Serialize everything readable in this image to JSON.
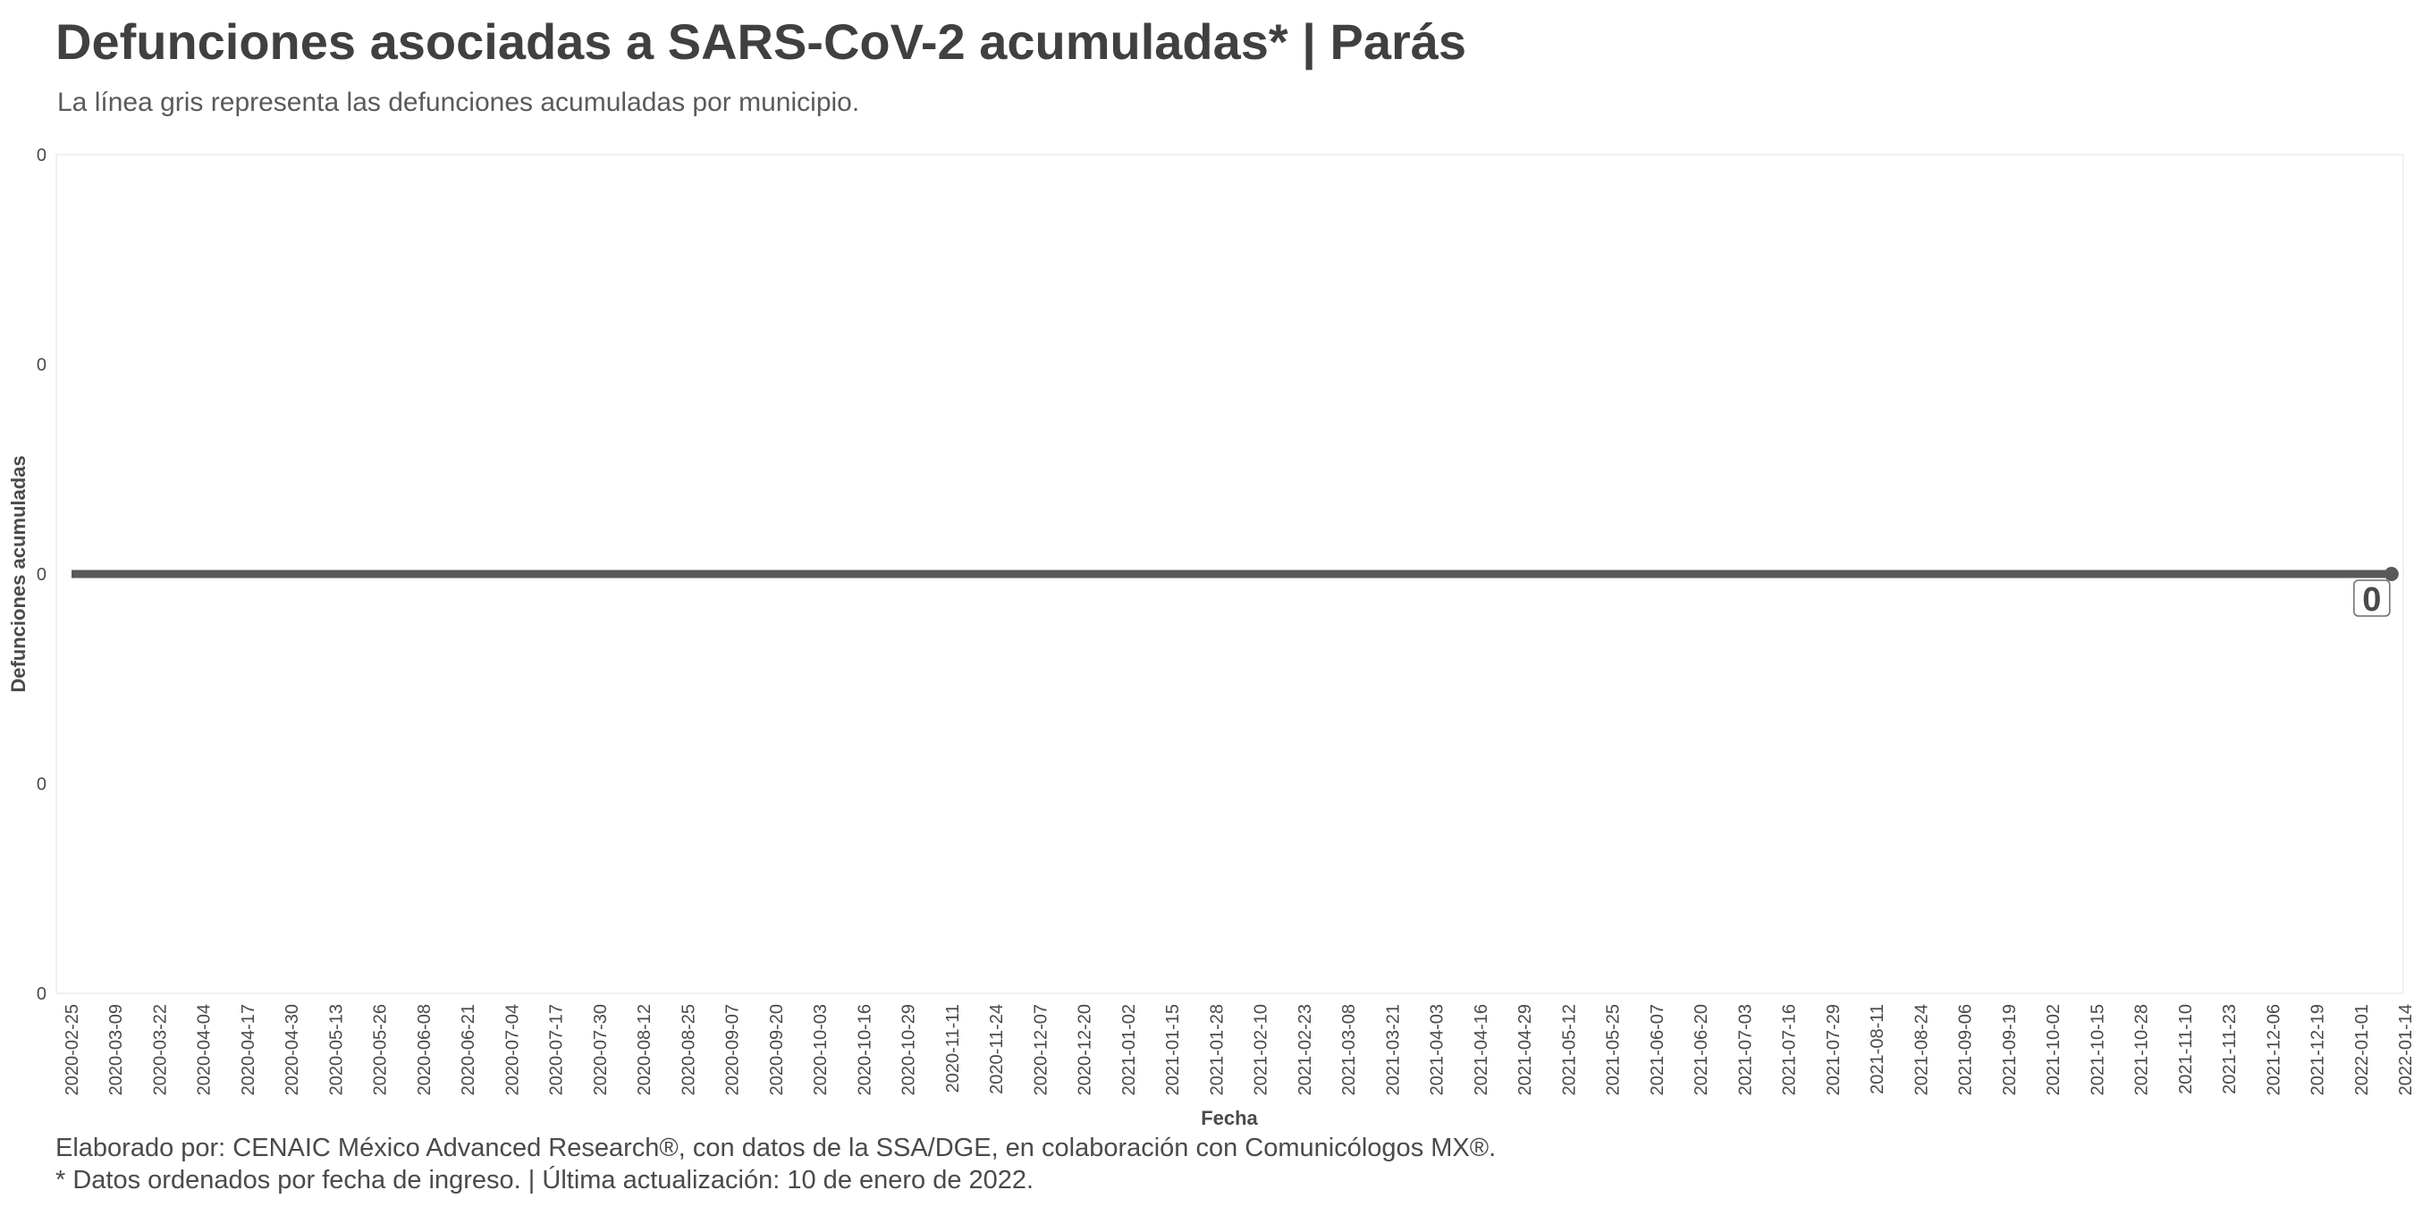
{
  "title": "Defunciones asociadas a SARS-CoV-2 acumuladas* | Parás",
  "subtitle": "La línea gris representa las defunciones acumuladas por municipio.",
  "caption_line1": "Elaborado por: CENAIC México Advanced Research®, con datos de la SSA/DGE, en colaboración con Comunicólogos MX®.",
  "caption_line2": "* Datos ordenados por fecha de ingreso. | Última actualización: 10 de enero de 2022.",
  "chart_data": {
    "type": "line",
    "xlabel": "Fecha",
    "ylabel": "Defunciones acumuladas",
    "x_tick_labels": [
      "2020-02-25",
      "2020-03-09",
      "2020-03-22",
      "2020-04-04",
      "2020-04-17",
      "2020-04-30",
      "2020-05-13",
      "2020-05-26",
      "2020-06-08",
      "2020-06-21",
      "2020-07-04",
      "2020-07-17",
      "2020-07-30",
      "2020-08-12",
      "2020-08-25",
      "2020-09-07",
      "2020-09-20",
      "2020-10-03",
      "2020-10-16",
      "2020-10-29",
      "2020-11-11",
      "2020-11-24",
      "2020-12-07",
      "2020-12-20",
      "2021-01-02",
      "2021-01-15",
      "2021-01-28",
      "2021-02-10",
      "2021-02-23",
      "2021-03-08",
      "2021-03-21",
      "2021-04-03",
      "2021-04-16",
      "2021-04-29",
      "2021-05-12",
      "2021-05-25",
      "2021-06-07",
      "2021-06-20",
      "2021-07-03",
      "2021-07-16",
      "2021-07-29",
      "2021-08-11",
      "2021-08-24",
      "2021-09-06",
      "2021-09-19",
      "2021-10-02",
      "2021-10-15",
      "2021-10-28",
      "2021-11-10",
      "2021-11-23",
      "2021-12-06",
      "2021-12-19",
      "2022-01-01",
      "2022-01-14"
    ],
    "y_tick_labels": [
      "0",
      "0",
      "0",
      "0",
      "0"
    ],
    "series": [
      {
        "x": [
          "2020-02-25",
          "2022-01-10"
        ],
        "y": [
          0,
          0
        ],
        "color": "#595959"
      }
    ],
    "end_label": "0",
    "line_color": "#595959",
    "grid": false
  }
}
